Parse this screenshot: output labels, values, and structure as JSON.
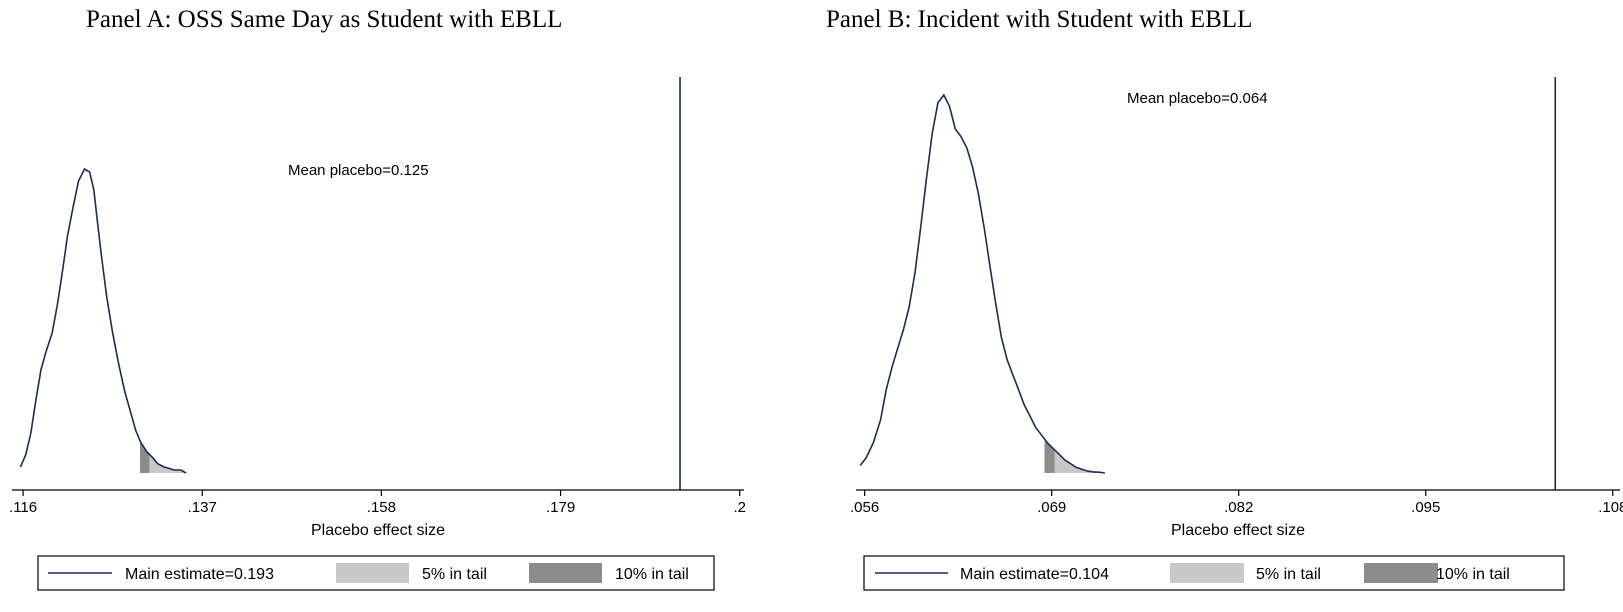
{
  "panels": [
    {
      "title": "Panel A: OSS Same Day as Student with EBLL",
      "chart_data": {
        "type": "area",
        "xlabel": "Placebo effect size",
        "xticks": [
          0.116,
          0.137,
          0.158,
          0.179,
          0.2
        ],
        "xtick_labels": [
          ".116",
          ".137",
          ".158",
          ".179",
          ".2"
        ],
        "xlim": [
          0.1147,
          0.2005
        ],
        "main_estimate": 0.193,
        "mean_placebo": 0.125,
        "annotation": "Mean placebo=0.125",
        "tail_10pct_start": 0.1297,
        "tail_5pct_start": 0.1308,
        "density": {
          "x": [
            0.1157,
            0.1163,
            0.1169,
            0.1175,
            0.1181,
            0.1187,
            0.1194,
            0.12,
            0.1206,
            0.1212,
            0.1219,
            0.1225,
            0.1232,
            0.1238,
            0.1243,
            0.1247,
            0.1252,
            0.1258,
            0.1265,
            0.1272,
            0.1279,
            0.1286,
            0.1292,
            0.1298,
            0.1305,
            0.1312,
            0.1318,
            0.1325,
            0.1331,
            0.1337,
            0.1345,
            0.1351
          ],
          "y": [
            0.02,
            0.06,
            0.13,
            0.24,
            0.34,
            0.4,
            0.46,
            0.55,
            0.66,
            0.78,
            0.88,
            0.96,
            1.0,
            0.99,
            0.93,
            0.83,
            0.71,
            0.58,
            0.46,
            0.36,
            0.27,
            0.2,
            0.14,
            0.1,
            0.07,
            0.05,
            0.03,
            0.02,
            0.015,
            0.01,
            0.01,
            0.0
          ]
        }
      },
      "legend": {
        "main": "Main estimate=0.193",
        "tail5": "5% in tail",
        "tail10": "10% in tail"
      }
    },
    {
      "title": "Panel B: Incident with Student with EBLL",
      "chart_data": {
        "type": "area",
        "xlabel": "Placebo effect size",
        "xticks": [
          0.056,
          0.069,
          0.082,
          0.095,
          0.108
        ],
        "xtick_labels": [
          ".056",
          ".069",
          ".082",
          ".095",
          ".108"
        ],
        "xlim": [
          0.0554,
          0.1085
        ],
        "main_estimate": 0.104,
        "mean_placebo": 0.064,
        "annotation": "Mean placebo=0.064",
        "tail_10pct_start": 0.0685,
        "tail_5pct_start": 0.0692,
        "density": {
          "x": [
            0.0557,
            0.0561,
            0.0566,
            0.0571,
            0.0575,
            0.0579,
            0.0583,
            0.0587,
            0.0591,
            0.0595,
            0.0599,
            0.0603,
            0.0607,
            0.0611,
            0.0615,
            0.0619,
            0.0623,
            0.0627,
            0.0631,
            0.0635,
            0.0639,
            0.0643,
            0.0647,
            0.0651,
            0.0655,
            0.0659,
            0.0663,
            0.0667,
            0.0671,
            0.0675,
            0.0679,
            0.0683,
            0.0687,
            0.0691,
            0.0695,
            0.0699,
            0.0703,
            0.0707,
            0.0711,
            0.0715,
            0.0719,
            0.0723,
            0.0727
          ],
          "y": [
            0.02,
            0.04,
            0.08,
            0.14,
            0.22,
            0.28,
            0.33,
            0.38,
            0.44,
            0.53,
            0.65,
            0.78,
            0.9,
            0.98,
            1.0,
            0.97,
            0.91,
            0.89,
            0.86,
            0.81,
            0.74,
            0.65,
            0.55,
            0.45,
            0.36,
            0.3,
            0.26,
            0.22,
            0.18,
            0.15,
            0.12,
            0.1,
            0.08,
            0.065,
            0.05,
            0.035,
            0.025,
            0.015,
            0.01,
            0.005,
            0.003,
            0.002,
            0.0
          ]
        }
      },
      "legend": {
        "main": "Main estimate=0.104",
        "tail5": "5% in tail",
        "tail10": "10% in tail"
      }
    }
  ],
  "colors": {
    "line": "#1f2a52",
    "tail5": "#c8c8c8",
    "tail10": "#8c8c8c",
    "axis": "#000000"
  }
}
